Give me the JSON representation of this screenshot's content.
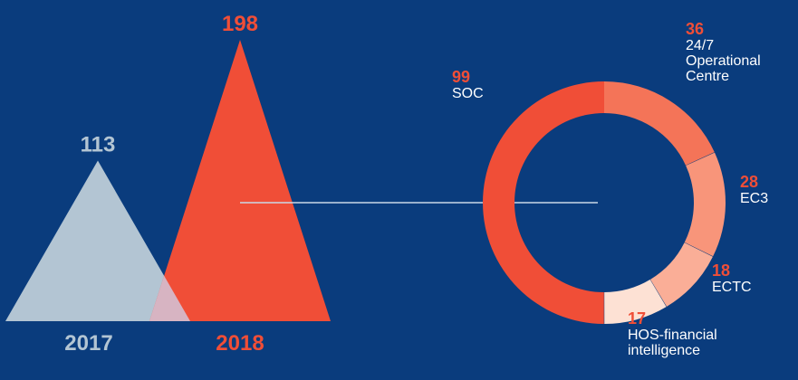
{
  "colors": {
    "background": "#0a3c7d",
    "year_2017": "#b3c5d3",
    "year_2018": "#f04e37",
    "overlap": "#d7b4c2",
    "accent_value": "#f04e37",
    "label_text": "#ffffff",
    "connector": "#c9d8e6"
  },
  "chart_data": [
    {
      "type": "bar",
      "mark_shape": "triangle",
      "categories": [
        "2017",
        "2018"
      ],
      "values": [
        113,
        198
      ],
      "value_labels": [
        "113",
        "198"
      ],
      "ylim": [
        0,
        198
      ],
      "grid": false
    },
    {
      "type": "pie",
      "style": "donut",
      "series": [
        {
          "values": [
            36,
            28,
            18,
            17,
            99
          ],
          "labels": [
            "24/7\nOperational\nCentre",
            "EC3",
            "ECTC",
            "HOS-financial\nintelligence",
            "SOC"
          ],
          "value_labels": [
            "36",
            "28",
            "18",
            "17",
            "99"
          ],
          "colors": [
            "#f47458",
            "#f8957a",
            "#faae97",
            "#fde1d4",
            "#f04e37"
          ]
        }
      ]
    }
  ]
}
